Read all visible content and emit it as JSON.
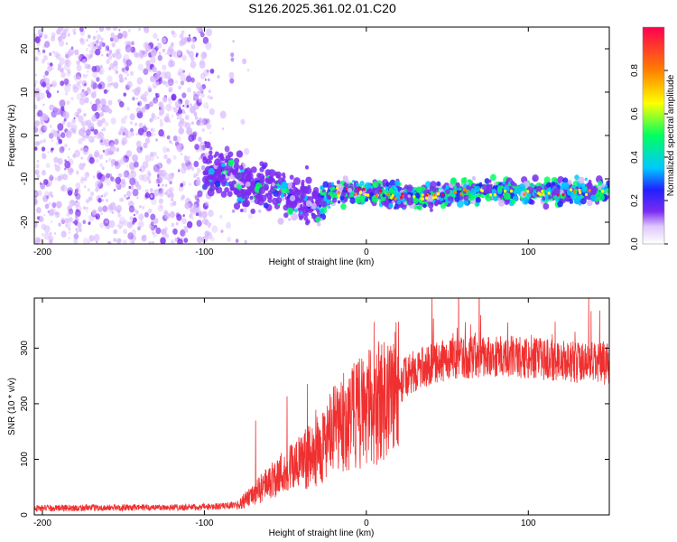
{
  "title": "S126.2025.361.02.01.C20",
  "chart_data": [
    {
      "type": "heatmap",
      "title": "S126.2025.361.02.01.C20",
      "xlabel": "Height of straight line (km)",
      "ylabel": "Frequency (Hz)",
      "xlim": [
        -205,
        150
      ],
      "ylim": [
        -25,
        25
      ],
      "x_ticks": [
        -200,
        -100,
        0,
        100
      ],
      "y_ticks": [
        -20,
        -10,
        0,
        10,
        20
      ],
      "colorbar": {
        "label": "Normalized spectral amplitude",
        "range": [
          0,
          1
        ],
        "ticks": [
          "0.0",
          "0.2",
          "0.4",
          "0.6",
          "0.8"
        ],
        "colors": [
          "#ffffff",
          "#d8b8ff",
          "#7b2cf0",
          "#2020ff",
          "#00c8ff",
          "#00ff60",
          "#ffff00",
          "#ff8000",
          "#ff0050"
        ]
      },
      "signal_track": {
        "description_points_x": [
          -90,
          -75,
          -60,
          -45,
          -30,
          -20,
          0,
          20,
          40,
          60,
          80,
          100,
          120,
          145
        ],
        "description_points_freq": [
          -8,
          -12,
          -11,
          -14,
          -16,
          -13,
          -13,
          -14,
          -14,
          -13,
          -13,
          -13,
          -13,
          -13
        ]
      }
    },
    {
      "type": "line",
      "title": "",
      "xlabel": "Height of straight line (km)",
      "ylabel": "SNR (10 * v/v)",
      "xlim": [
        -205,
        150
      ],
      "ylim": [
        0,
        390
      ],
      "x_ticks": [
        -200,
        -100,
        0,
        100
      ],
      "y_ticks": [
        0,
        100,
        200,
        300
      ],
      "series": [
        {
          "name": "SNR",
          "color": "#f03030",
          "envelope_x": [
            -205,
            -100,
            -80,
            -70,
            -60,
            -50,
            -40,
            -30,
            -20,
            -10,
            0,
            10,
            20,
            30,
            50,
            70,
            90,
            110,
            130,
            150
          ],
          "envelope_mean": [
            12,
            14,
            18,
            35,
            60,
            80,
            95,
            115,
            150,
            175,
            190,
            205,
            235,
            260,
            280,
            285,
            285,
            280,
            275,
            270
          ]
        }
      ]
    }
  ]
}
